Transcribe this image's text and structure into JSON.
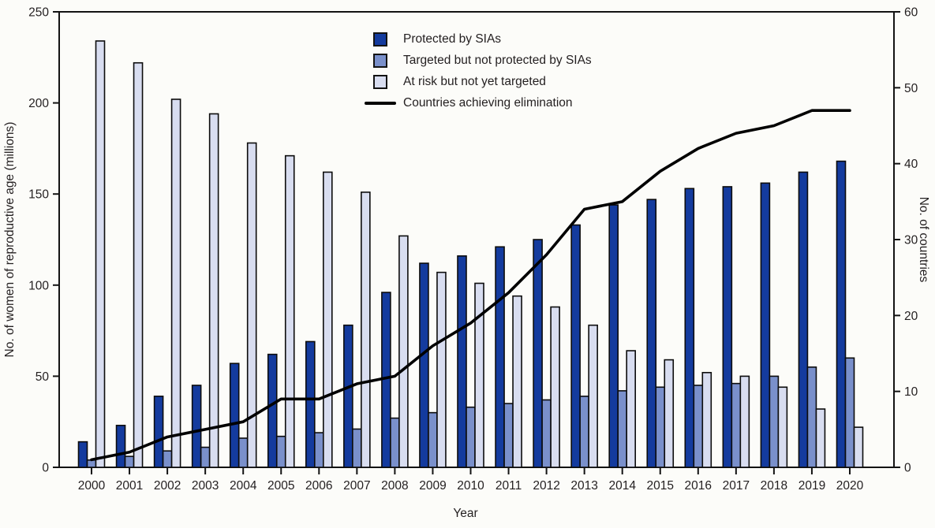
{
  "chart_data": {
    "type": "bar+line",
    "title": "",
    "xlabel": "Year",
    "x": [
      2000,
      2001,
      2002,
      2003,
      2004,
      2005,
      2006,
      2007,
      2008,
      2009,
      2010,
      2011,
      2012,
      2013,
      2014,
      2015,
      2016,
      2017,
      2018,
      2019,
      2020
    ],
    "left_axis": {
      "label": "No. of women of reproductive age (millions)",
      "range": [
        0,
        250
      ],
      "ticks": [
        0,
        50,
        100,
        150,
        200,
        250
      ]
    },
    "right_axis": {
      "label": "No. of countries",
      "range": [
        0,
        60
      ],
      "ticks": [
        0,
        10,
        20,
        30,
        40,
        50,
        60
      ]
    },
    "grid": false,
    "legend_position": "inside-top-center",
    "series": [
      {
        "name": "Protected by SIAs",
        "type": "bar",
        "axis": "left",
        "color": "#143B9E",
        "values": [
          14,
          23,
          39,
          45,
          57,
          62,
          69,
          78,
          96,
          112,
          116,
          121,
          125,
          133,
          144,
          147,
          153,
          154,
          156,
          162,
          168
        ]
      },
      {
        "name": "Targeted but not protected by SIAs",
        "type": "bar",
        "axis": "left",
        "color": "#7A90CB",
        "values": [
          4,
          6,
          9,
          11,
          16,
          17,
          19,
          21,
          27,
          30,
          33,
          35,
          37,
          39,
          42,
          44,
          45,
          46,
          50,
          55,
          60
        ]
      },
      {
        "name": "At risk but not yet targeted",
        "type": "bar",
        "axis": "left",
        "color": "#D8DDF0",
        "values": [
          234,
          222,
          202,
          194,
          178,
          171,
          162,
          151,
          127,
          107,
          101,
          94,
          88,
          78,
          64,
          59,
          52,
          50,
          44,
          32,
          22
        ]
      },
      {
        "name": "Countries achieving elimination",
        "type": "line",
        "axis": "right",
        "color": "#000000",
        "values": [
          1,
          2,
          4,
          5,
          6,
          9,
          9,
          11,
          12,
          16,
          19,
          23,
          28,
          34,
          35,
          39,
          42,
          44,
          45,
          47,
          47
        ]
      }
    ]
  }
}
